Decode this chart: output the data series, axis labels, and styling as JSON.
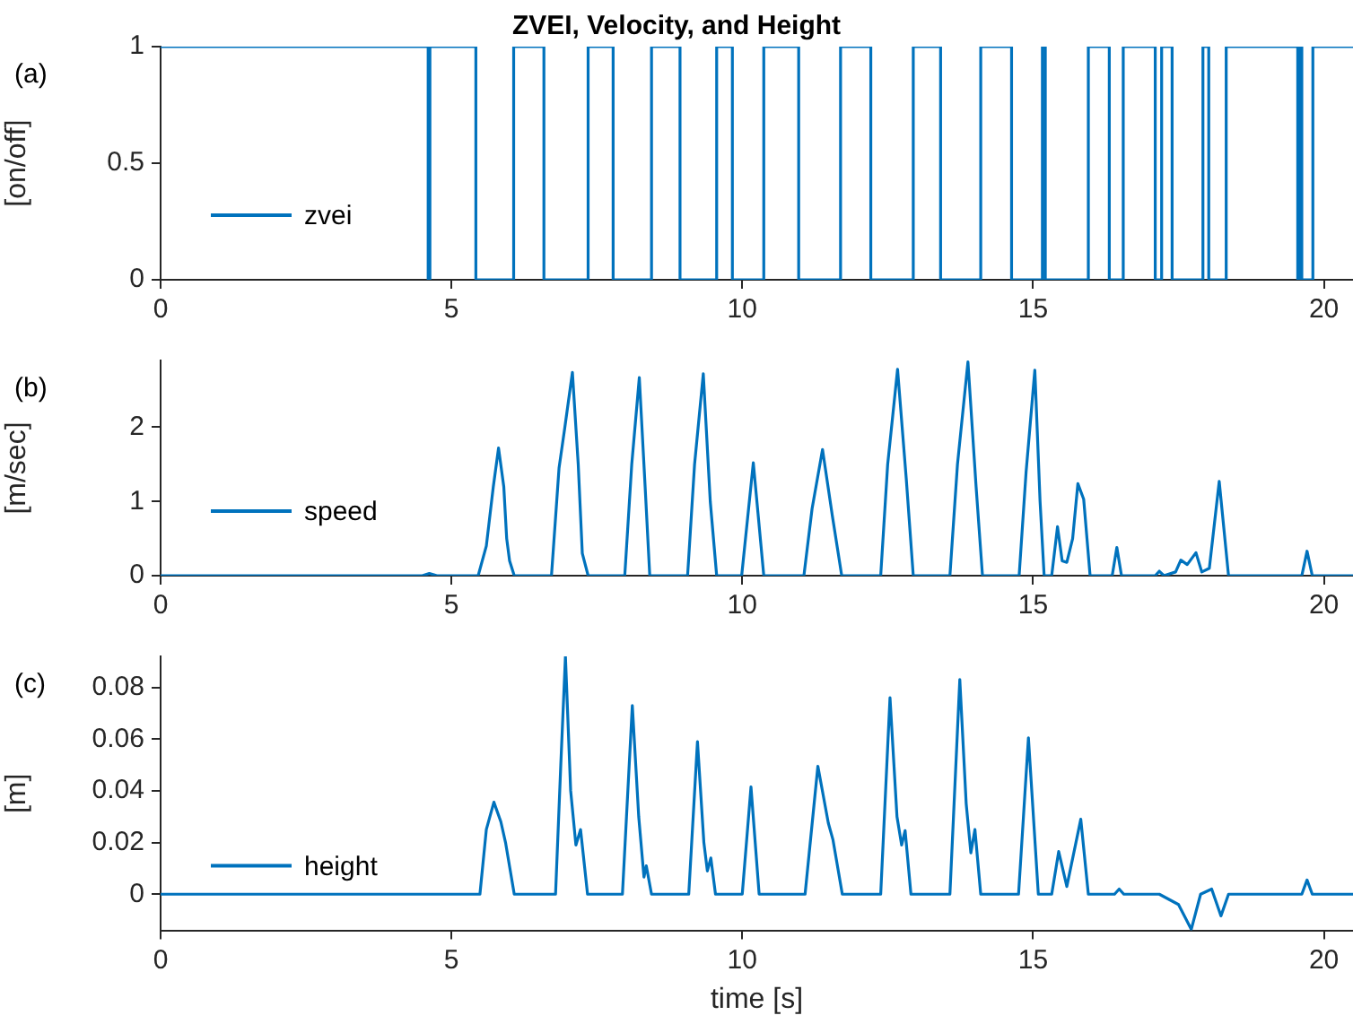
{
  "chart_data": [
    {
      "type": "step",
      "title": "ZVEI, Velocity, and Height",
      "ylabel": "[on/off]",
      "annotations": [
        "(a)"
      ],
      "xlim": [
        0,
        20.5
      ],
      "xticks": [
        0,
        5,
        10,
        15,
        20
      ],
      "ylim": [
        0,
        1
      ],
      "yticks": [
        0,
        0.5,
        1
      ],
      "legend": "bottom left",
      "grid": false,
      "series": [
        {
          "name": "zvei",
          "color": "#0072bd",
          "x": [
            0,
            4.6,
            4.63,
            5.42,
            6.07,
            6.59,
            7.35,
            7.78,
            8.44,
            8.93,
            9.56,
            9.83,
            10.37,
            10.97,
            11.69,
            12.21,
            12.94,
            13.41,
            14.1,
            14.63,
            15.16,
            15.21,
            15.95,
            16.31,
            16.55,
            17.1,
            17.21,
            17.39,
            17.92,
            18.02,
            18.32,
            19.55,
            19.59,
            19.62,
            19.81,
            20.5
          ],
          "values": [
            1,
            0,
            1,
            0,
            1,
            0,
            1,
            0,
            1,
            0,
            1,
            0,
            1,
            0,
            1,
            0,
            1,
            0,
            1,
            0,
            1,
            0,
            1,
            0,
            1,
            0,
            1,
            0,
            1,
            0,
            1,
            0,
            1,
            0,
            1,
            1
          ]
        }
      ]
    },
    {
      "type": "line",
      "ylabel": "[m/sec]",
      "annotations": [
        "(b)"
      ],
      "xlim": [
        0,
        20.5
      ],
      "xticks": [
        0,
        5,
        10,
        15,
        20
      ],
      "ylim": [
        0,
        2.9
      ],
      "yticks": [
        0,
        1,
        2
      ],
      "legend": "bottom left",
      "grid": false,
      "series": [
        {
          "name": "speed",
          "color": "#0072bd",
          "x": [
            0,
            4.5,
            4.62,
            4.75,
            5.46,
            5.6,
            5.72,
            5.81,
            5.9,
            5.95,
            6.0,
            6.08,
            6.72,
            6.85,
            6.95,
            7.08,
            7.18,
            7.25,
            7.35,
            7.98,
            8.1,
            8.23,
            8.33,
            8.41,
            9.06,
            9.18,
            9.33,
            9.45,
            9.56,
            9.99,
            10.19,
            10.37,
            11.06,
            11.2,
            11.38,
            11.55,
            11.71,
            12.38,
            12.5,
            12.67,
            12.82,
            12.94,
            13.57,
            13.7,
            13.88,
            14.02,
            14.13,
            14.76,
            14.88,
            15.03,
            15.12,
            15.19,
            15.32,
            15.42,
            15.5,
            15.58,
            15.68,
            15.77,
            15.87,
            15.98,
            16.36,
            16.44,
            16.52,
            17.1,
            17.17,
            17.25,
            17.45,
            17.54,
            17.65,
            17.8,
            17.9,
            18.03,
            18.2,
            18.36,
            19.62,
            19.71,
            19.8,
            20.5
          ],
          "values": [
            0,
            0,
            0.03,
            0,
            0,
            0.4,
            1.2,
            1.72,
            1.2,
            0.5,
            0.2,
            0,
            0,
            1.45,
            2.0,
            2.74,
            1.5,
            0.3,
            0,
            0,
            1.5,
            2.67,
            1.2,
            0,
            0,
            1.5,
            2.72,
            1.0,
            0,
            0,
            1.52,
            0,
            0,
            0.9,
            1.7,
            0.8,
            0,
            0,
            1.5,
            2.78,
            1.3,
            0,
            0,
            1.5,
            2.88,
            1.2,
            0,
            0,
            1.4,
            2.77,
            1.0,
            0,
            0,
            0.66,
            0.2,
            0.18,
            0.5,
            1.24,
            1.03,
            0,
            0,
            0.38,
            0,
            0,
            0.06,
            0,
            0.05,
            0.21,
            0.15,
            0.31,
            0.05,
            0.1,
            1.27,
            0,
            0,
            0.33,
            0,
            0
          ]
        }
      ]
    },
    {
      "type": "line",
      "ylabel": "[m]",
      "xlabel": "time [s]",
      "annotations": [
        "(c)"
      ],
      "xlim": [
        0,
        20.5
      ],
      "xticks": [
        0,
        5,
        10,
        15,
        20
      ],
      "ylim": [
        -0.014,
        0.092
      ],
      "yticks": [
        0,
        0.02,
        0.04,
        0.06,
        0.08
      ],
      "legend": "bottom left",
      "grid": false,
      "series": [
        {
          "name": "height",
          "color": "#0072bd",
          "x": [
            0,
            5.49,
            5.6,
            5.73,
            5.85,
            5.93,
            6.08,
            6.79,
            6.88,
            6.96,
            7.05,
            7.14,
            7.22,
            7.34,
            7.94,
            8.11,
            8.22,
            8.31,
            8.35,
            8.44,
            9.08,
            9.23,
            9.34,
            9.4,
            9.46,
            9.54,
            10.0,
            10.15,
            10.29,
            11.08,
            11.3,
            11.48,
            11.56,
            11.72,
            12.38,
            12.54,
            12.66,
            12.74,
            12.8,
            12.9,
            13.57,
            13.74,
            13.85,
            13.93,
            14.0,
            14.1,
            14.75,
            14.92,
            15.09,
            15.32,
            15.44,
            15.58,
            15.82,
            15.95,
            16.4,
            16.48,
            16.56,
            17.17,
            17.5,
            17.72,
            17.88,
            18.07,
            18.23,
            18.36,
            19.62,
            19.71,
            19.8,
            20.5
          ],
          "values": [
            0,
            0,
            0.025,
            0.0356,
            0.028,
            0.02,
            0,
            0,
            0.05,
            0.092,
            0.04,
            0.019,
            0.025,
            0,
            0,
            0.073,
            0.03,
            0.0066,
            0.011,
            0,
            0,
            0.059,
            0.02,
            0.009,
            0.014,
            0,
            0,
            0.0415,
            0,
            0,
            0.0495,
            0.0275,
            0.021,
            0,
            0,
            0.076,
            0.03,
            0.019,
            0.0246,
            0,
            0,
            0.083,
            0.035,
            0.016,
            0.025,
            0,
            0,
            0.0605,
            0,
            0,
            0.0165,
            0.003,
            0.029,
            0,
            0,
            0.002,
            0,
            0,
            -0.004,
            -0.0136,
            0,
            0.002,
            -0.0084,
            0,
            0,
            0.0055,
            0,
            0
          ]
        }
      ]
    }
  ]
}
